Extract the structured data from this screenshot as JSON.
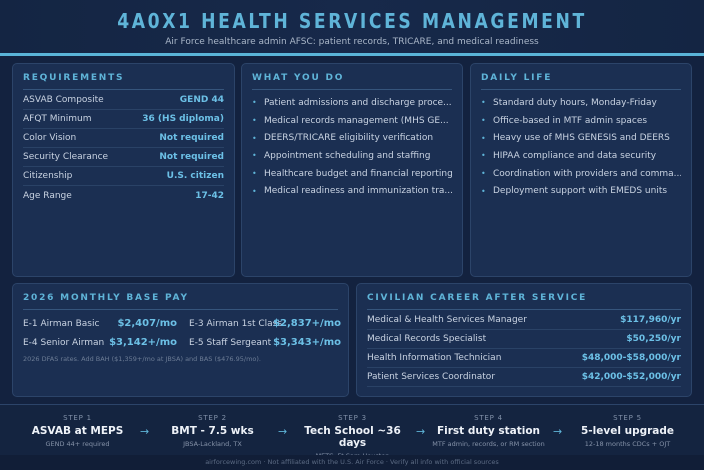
{
  "header": {
    "title": "4A0X1 HEALTH SERVICES MANAGEMENT",
    "subtitle": "Air Force healthcare admin AFSC: patient records, TRICARE, and medical readiness"
  },
  "requirements": {
    "title": "REQUIREMENTS",
    "rows": [
      {
        "label": "ASVAB Composite",
        "value": "GEND 44"
      },
      {
        "label": "AFQT Minimum",
        "value": "36 (HS diploma)"
      },
      {
        "label": "Color Vision",
        "value": "Not required"
      },
      {
        "label": "Security Clearance",
        "value": "Not required"
      },
      {
        "label": "Citizenship",
        "value": "U.S. citizen"
      },
      {
        "label": "Age Range",
        "value": "17-42"
      }
    ]
  },
  "what_you_do": {
    "title": "WHAT YOU DO",
    "items": [
      "Patient admissions and discharge proce...",
      "Medical records management (MHS GE...",
      "DEERS/TRICARE eligibility verification",
      "Appointment scheduling and staffing",
      "Healthcare budget and financial reporting",
      "Medical readiness and immunization tra..."
    ]
  },
  "daily_life": {
    "title": "DAILY LIFE",
    "items": [
      "Standard duty hours, Monday-Friday",
      "Office-based in MTF admin spaces",
      "Heavy use of MHS GENESIS and DEERS",
      "HIPAA compliance and data security",
      "Coordination with providers and comma...",
      "Deployment support with EMEDS units"
    ]
  },
  "pay": {
    "title": "2026 MONTHLY BASE PAY",
    "rows": [
      {
        "label": "E-1 Airman Basic",
        "value": "$2,407/mo"
      },
      {
        "label": "E-3 Airman 1st Class",
        "value": "$2,837+/mo"
      },
      {
        "label": "E-4 Senior Airman",
        "value": "$3,142+/mo"
      },
      {
        "label": "E-5 Staff Sergeant",
        "value": "$3,343+/mo"
      }
    ],
    "note": "2026 DFAS rates. Add BAH ($1,359+/mo at JBSA) and BAS ($476.95/mo)."
  },
  "civilian": {
    "title": "CIVILIAN CAREER AFTER SERVICE",
    "rows": [
      {
        "label": "Medical & Health Services Manager",
        "value": "$117,960/yr"
      },
      {
        "label": "Medical Records Specialist",
        "value": "$50,250/yr"
      },
      {
        "label": "Health Information Technician",
        "value": "$48,000-$58,000/yr"
      },
      {
        "label": "Patient Services Coordinator",
        "value": "$42,000-$52,000/yr"
      }
    ]
  },
  "steps": [
    {
      "num": "STEP 1",
      "title": "ASVAB at MEPS",
      "sub": "GEND 44+ required"
    },
    {
      "num": "STEP 2",
      "title": "BMT - 7.5 wks",
      "sub": "JBSA-Lackland, TX"
    },
    {
      "num": "STEP 3",
      "title": "Tech School ~36 days",
      "sub": "METC, Ft Sam Houston"
    },
    {
      "num": "STEP 4",
      "title": "First duty station",
      "sub": "MTF admin, records, or RM section"
    },
    {
      "num": "STEP 5",
      "title": "5-level upgrade",
      "sub": "12-18 months CDCs + OJT"
    }
  ],
  "arrow": "→",
  "footer": "airforcewing.com · Not affiliated with the U.S. Air Force · Verify all info with official sources"
}
